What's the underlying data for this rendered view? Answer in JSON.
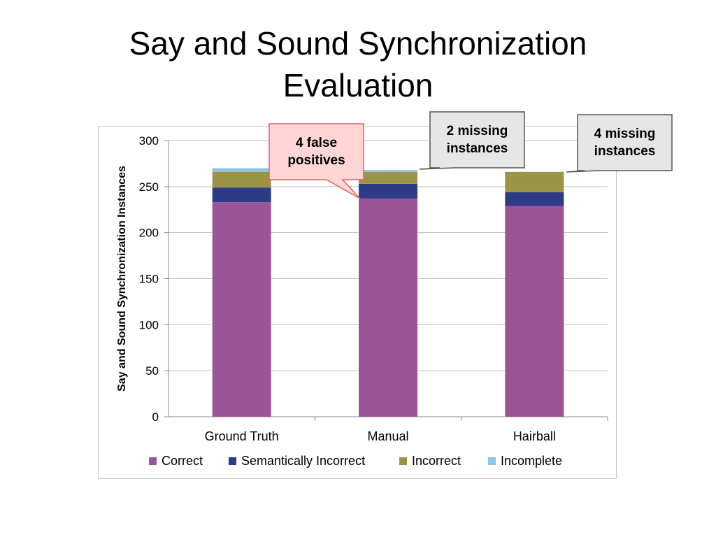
{
  "slide": {
    "title_line1": "Say and Sound Synchronization",
    "title_line2": "Evaluation"
  },
  "chart_data": {
    "type": "bar",
    "stacked": true,
    "categories": [
      "Ground Truth",
      "Manual",
      "Hairball"
    ],
    "series": [
      {
        "name": "Correct",
        "color": "#9b5597",
        "values": [
          233,
          237,
          229
        ]
      },
      {
        "name": "Semantically Incorrect",
        "color": "#2e3b86",
        "values": [
          16,
          16,
          15
        ]
      },
      {
        "name": "Incorrect",
        "color": "#9c9445",
        "values": [
          17,
          13,
          22
        ]
      },
      {
        "name": "Incomplete",
        "color": "#8fc4e2",
        "values": [
          4,
          2,
          0
        ]
      }
    ],
    "title": "",
    "xlabel": "",
    "ylabel": "Say and Sound Synchronization Instances",
    "ylim": [
      0,
      300
    ],
    "yticks": [
      0,
      50,
      100,
      150,
      200,
      250,
      300
    ],
    "grid": true,
    "legend_position": "bottom"
  },
  "callouts": {
    "false_positives": {
      "text_line1": "4 false",
      "text_line2": "positives",
      "fill": "#ffd6d6",
      "stroke": "#e06060"
    },
    "manual_missing": {
      "text_line1": "2 missing",
      "text_line2": "instances",
      "fill": "#e6e6e6",
      "stroke": "#555555"
    },
    "hairball_missing": {
      "text_line1": "4 missing",
      "text_line2": "instances",
      "fill": "#e6e6e6",
      "stroke": "#555555"
    }
  }
}
